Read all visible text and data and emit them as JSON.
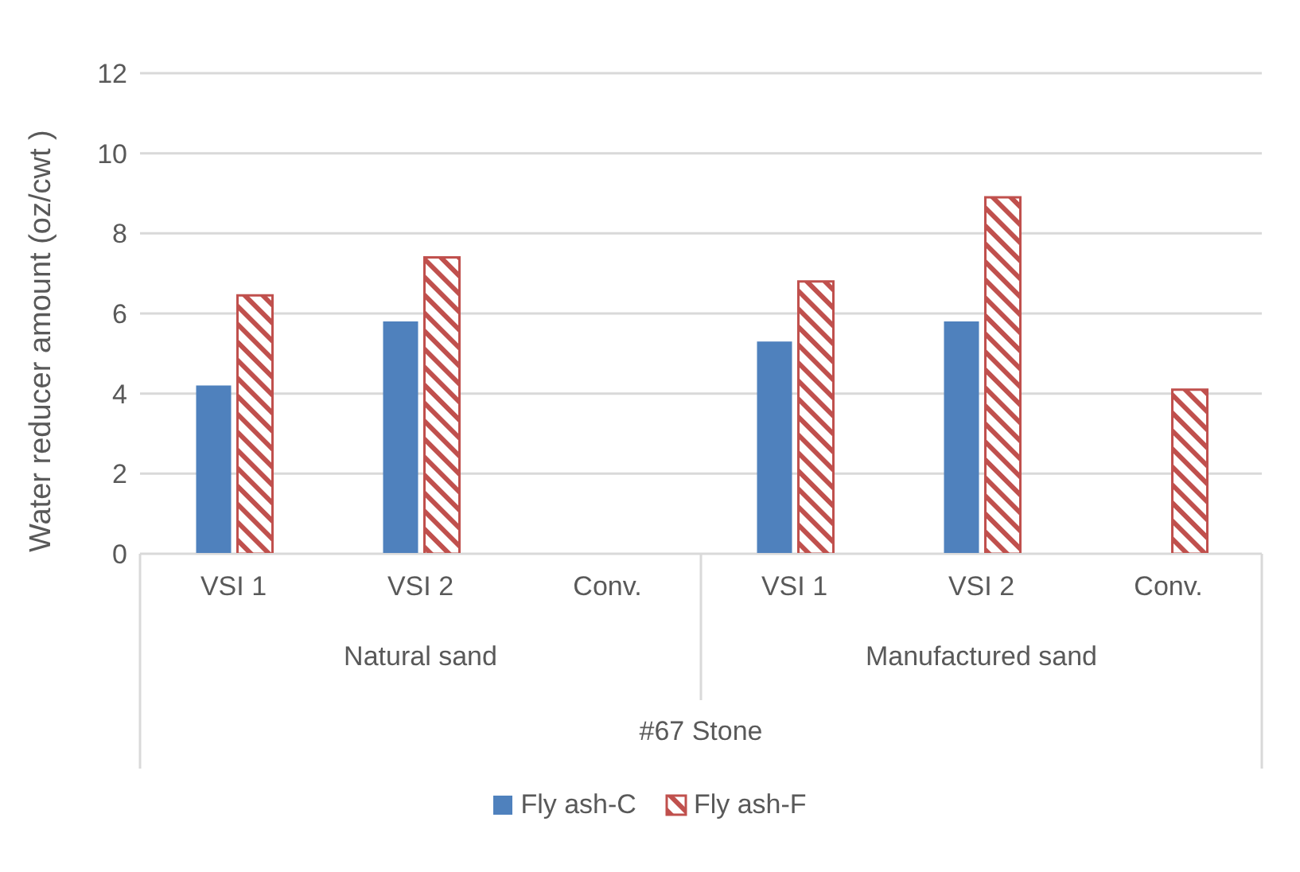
{
  "chart_data": {
    "type": "bar",
    "ylabel": "Water reducer amount (oz/cwt )",
    "categories": [
      "VSI 1",
      "VSI 2",
      "Conv.",
      "VSI 1",
      "VSI 2",
      "Conv."
    ],
    "series": [
      {
        "name": "Fly ash-C",
        "color": "#4f81bd",
        "values": [
          4.2,
          5.8,
          null,
          5.3,
          5.8,
          null
        ]
      },
      {
        "name": "Fly ash-F",
        "color": "#c0504d",
        "values": [
          6.45,
          7.4,
          null,
          6.8,
          8.9,
          4.1
        ]
      }
    ],
    "ylim": [
      0,
      12
    ],
    "yticks": [
      0,
      2,
      4,
      6,
      8,
      10,
      12
    ],
    "grid": "y",
    "legend": "bottom",
    "annotations": [
      "Natural sand",
      "Manufactured sand",
      "#67 Stone"
    ]
  }
}
